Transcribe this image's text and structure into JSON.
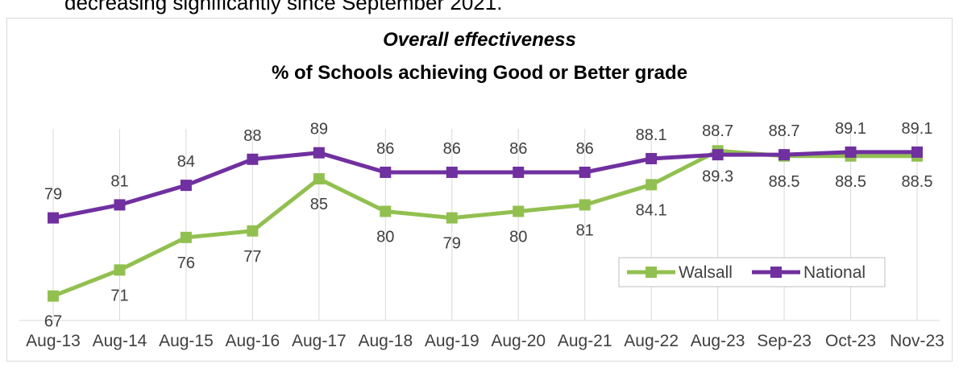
{
  "top_text": "decreasing significantly since September 2021.",
  "colors": {
    "walsall": "#92c050",
    "national": "#7030a0",
    "grid": "#d9d9d9"
  },
  "chart_data": {
    "type": "line",
    "title": "Overall effectiveness",
    "subtitle": "% of Schools achieving Good or Better grade",
    "categories": [
      "Aug-13",
      "Aug-14",
      "Aug-15",
      "Aug-16",
      "Aug-17",
      "Aug-18",
      "Aug-19",
      "Aug-20",
      "Aug-21",
      "Aug-22",
      "Aug-23",
      "Sep-23",
      "Oct-23",
      "Nov-23"
    ],
    "series": [
      {
        "name": "Walsall",
        "values": [
          67,
          71,
          76,
          77,
          85,
          80,
          79,
          80,
          81,
          84.1,
          89.3,
          88.5,
          88.5,
          88.5
        ]
      },
      {
        "name": "National",
        "values": [
          79,
          81,
          84,
          88,
          89,
          86,
          86,
          86,
          86,
          88.1,
          88.7,
          88.7,
          89.1,
          89.1
        ]
      }
    ],
    "ylim": [
      63,
      97
    ],
    "grid": "vertical",
    "legend": "bottom-right"
  }
}
